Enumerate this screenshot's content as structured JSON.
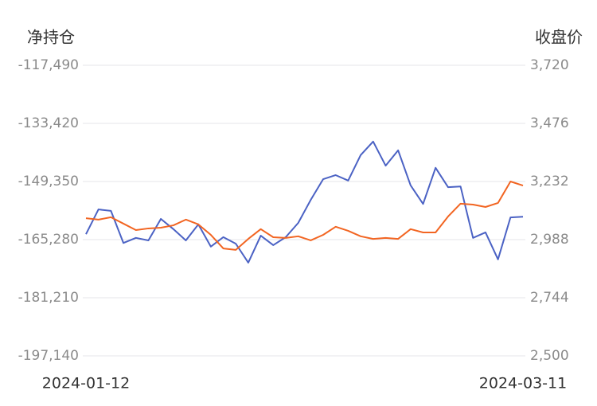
{
  "chart_data": {
    "type": "line",
    "y_label": "净持仓",
    "y2_label": "收盘价",
    "categories": [
      "2024-01-12",
      null,
      null,
      null,
      null,
      null,
      null,
      null,
      null,
      null,
      null,
      null,
      null,
      null,
      null,
      null,
      null,
      null,
      null,
      null,
      null,
      null,
      null,
      null,
      null,
      null,
      null,
      null,
      null,
      null,
      null,
      null,
      null,
      null,
      null,
      "2024-03-11"
    ],
    "series": [
      {
        "color": "#4b62c4",
        "values": [
          -163800,
          -157000,
          -157400,
          -166200,
          -164800,
          -165500,
          -159600,
          -162400,
          -165500,
          -161100,
          -167200,
          -164600,
          -166400,
          -171600,
          -164200,
          -166800,
          -164600,
          -160700,
          -154400,
          -148700,
          -147600,
          -149100,
          -142100,
          -138400,
          -145000,
          -140800,
          -150400,
          -155500,
          -145600,
          -150900,
          -150700,
          -164800,
          -163300,
          -170700,
          -159200,
          -159000
        ]
      },
      {
        "color": "#f26522",
        "axis": "y2",
        "values": [
          3078,
          3072,
          3082,
          3055,
          3028,
          3035,
          3038,
          3048,
          3072,
          3052,
          3008,
          2951,
          2945,
          2991,
          3032,
          2998,
          2995,
          3002,
          2985,
          3008,
          3042,
          3025,
          3002,
          2991,
          2995,
          2991,
          3032,
          3018,
          3018,
          3085,
          3139,
          3135,
          3125,
          3142,
          3232,
          3215
        ]
      }
    ],
    "ylim": [
      -197140,
      -117490
    ],
    "yticks": [
      {
        "value": -197140,
        "label": "-197,140"
      },
      {
        "value": -181210,
        "label": "-181,210"
      },
      {
        "value": -165280,
        "label": "-165,280"
      },
      {
        "value": -149350,
        "label": "-149,350"
      },
      {
        "value": -133420,
        "label": "-133,420"
      },
      {
        "value": -117490,
        "label": "-117,490"
      }
    ],
    "y2lim": [
      2500,
      3720
    ],
    "y2ticks": [
      {
        "value": 2500,
        "label": "2,500"
      },
      {
        "value": 2744,
        "label": "2,744"
      },
      {
        "value": 2988,
        "label": "2,988"
      },
      {
        "value": 3232,
        "label": "3,232"
      },
      {
        "value": 3476,
        "label": "3,476"
      },
      {
        "value": 3720,
        "label": "3,720"
      }
    ],
    "grid": true
  }
}
